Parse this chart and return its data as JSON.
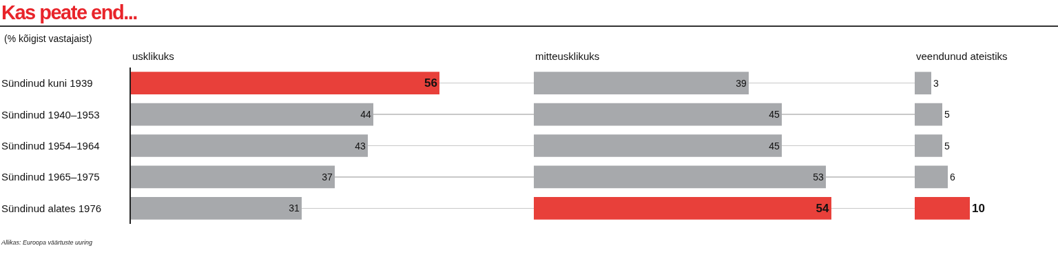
{
  "chart_data": [
    {
      "type": "bar",
      "orientation": "horizontal",
      "title": "Kas peate end...",
      "subtitle": "(% kõigist vastajaist)",
      "xlabel": "usklikuks",
      "annotations": [
        "Allikas: Euroopa väärtuste uuring"
      ],
      "categories": [
        "Sündinud kuni 1939",
        "Sündinud 1940–1953",
        "Sündinud 1954–1964",
        "Sündinud 1965–1975",
        "Sündinud alates 1976"
      ],
      "values": [
        56,
        44,
        43,
        37,
        31
      ],
      "colors": [
        "#e8403a",
        "#a7a9ac",
        "#a7a9ac",
        "#a7a9ac",
        "#a7a9ac"
      ],
      "data_labels": true,
      "grid": "y",
      "tick_labels": "y"
    },
    {
      "type": "bar",
      "orientation": "horizontal",
      "xlabel": "mitteusklikuks",
      "values": [
        39,
        45,
        45,
        53,
        54
      ],
      "colors": [
        "#a7a9ac",
        "#a7a9ac",
        "#a7a9ac",
        "#a7a9ac",
        "#e8403a"
      ],
      "data_labels": true,
      "grid": "y",
      "tick_labels": false
    },
    {
      "type": "bar",
      "orientation": "horizontal",
      "xlabel": "veendunud ateistiks",
      "values": [
        3,
        5,
        5,
        6,
        10
      ],
      "colors": [
        "#a7a9ac",
        "#a7a9ac",
        "#a7a9ac",
        "#a7a9ac",
        "#e8403a"
      ],
      "data_labels": true,
      "tick_labels": false
    }
  ]
}
